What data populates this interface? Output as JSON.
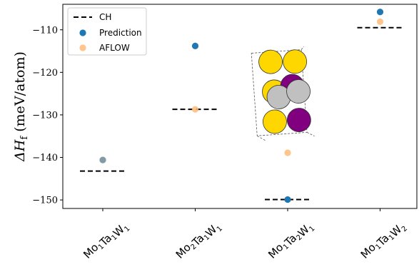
{
  "chart_data": {
    "type": "scatter",
    "ylabel": "ΔH",
    "ylabel_sub": "f",
    "ylabel_unit": " (meV/atom)",
    "ylim": [
      -152,
      -104
    ],
    "yticks": [
      -150,
      -140,
      -130,
      -120,
      -110
    ],
    "ytick_labels": [
      "−150",
      "−140",
      "−130",
      "−120",
      "−110"
    ],
    "categories": [
      {
        "parts": [
          {
            "t": "Mo",
            "s": "1"
          },
          {
            "t": "Ta",
            "s": "1"
          },
          {
            "t": "W",
            "s": "1"
          }
        ]
      },
      {
        "parts": [
          {
            "t": "Mo",
            "s": "2"
          },
          {
            "t": "Ta",
            "s": "1"
          },
          {
            "t": "W",
            "s": "1"
          }
        ]
      },
      {
        "parts": [
          {
            "t": "Mo",
            "s": "1"
          },
          {
            "t": "Ta",
            "s": "2"
          },
          {
            "t": "W",
            "s": "1"
          }
        ]
      },
      {
        "parts": [
          {
            "t": "Mo",
            "s": "1"
          },
          {
            "t": "Ta",
            "s": "1"
          },
          {
            "t": "W",
            "s": "2"
          }
        ]
      }
    ],
    "series": [
      {
        "name": "CH",
        "style": "dashed-line",
        "color": "#000000",
        "values": [
          -143.2,
          -128.7,
          -149.9,
          -109.5
        ]
      },
      {
        "name": "Prediction",
        "style": "point",
        "color": "#1f77b4",
        "values": [
          -140.6,
          -113.8,
          -149.9,
          -105.8
        ]
      },
      {
        "name": "AFLOW",
        "style": "point",
        "color": "#ffbb78",
        "alpha": 0.85,
        "values": [
          -140.6,
          -128.7,
          -138.9,
          -108.1
        ]
      }
    ],
    "legend_position": "upper-left",
    "grid": false,
    "inset": {
      "description_colors": {
        "Mo": "#ffd700",
        "Ta": "#800080",
        "W": "#c0c0c0"
      }
    }
  }
}
